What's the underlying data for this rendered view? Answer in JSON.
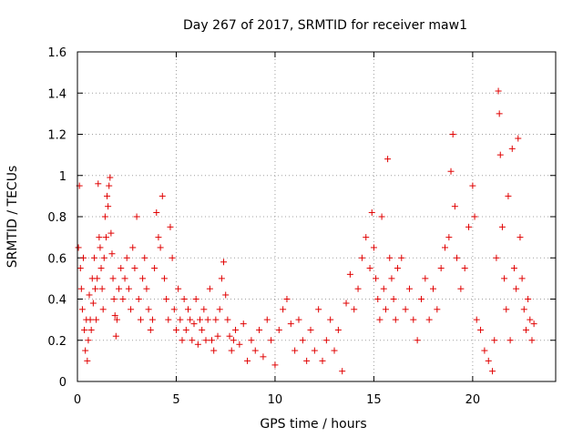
{
  "chart_data": {
    "type": "scatter",
    "title": "Day 267 of 2017, SRMTID for receiver maw1",
    "xlabel": "GPS time / hours",
    "ylabel": "SRMTID / TECUs",
    "xlim": [
      0,
      24.2
    ],
    "ylim": [
      0,
      1.6
    ],
    "x_ticks": [
      "0",
      "5",
      "10",
      "15",
      "20"
    ],
    "x_tick_values": [
      0,
      5,
      10,
      15,
      20
    ],
    "y_ticks": [
      "0",
      "0.2",
      "0.4",
      "0.6",
      "0.8",
      "1",
      "1.2",
      "1.4",
      "1.6"
    ],
    "y_tick_values": [
      0,
      0.2,
      0.4,
      0.6,
      0.8,
      1.0,
      1.2,
      1.4,
      1.6
    ],
    "grid": true,
    "marker": "plus",
    "color": "#e00000",
    "series": [
      {
        "name": "SRMTID",
        "points": [
          [
            0.05,
            0.65
          ],
          [
            0.1,
            0.95
          ],
          [
            0.15,
            0.55
          ],
          [
            0.2,
            0.45
          ],
          [
            0.25,
            0.35
          ],
          [
            0.3,
            0.6
          ],
          [
            0.35,
            0.25
          ],
          [
            0.4,
            0.15
          ],
          [
            0.45,
            0.3
          ],
          [
            0.5,
            0.1
          ],
          [
            0.55,
            0.2
          ],
          [
            0.6,
            0.42
          ],
          [
            0.65,
            0.3
          ],
          [
            0.7,
            0.25
          ],
          [
            0.75,
            0.5
          ],
          [
            0.8,
            0.38
          ],
          [
            0.85,
            0.6
          ],
          [
            0.9,
            0.45
          ],
          [
            0.95,
            0.3
          ],
          [
            1.0,
            0.5
          ],
          [
            1.05,
            0.96
          ],
          [
            1.1,
            0.7
          ],
          [
            1.15,
            0.65
          ],
          [
            1.2,
            0.55
          ],
          [
            1.25,
            0.45
          ],
          [
            1.3,
            0.35
          ],
          [
            1.35,
            0.6
          ],
          [
            1.4,
            0.8
          ],
          [
            1.45,
            0.7
          ],
          [
            1.5,
            0.9
          ],
          [
            1.55,
            0.85
          ],
          [
            1.6,
            0.95
          ],
          [
            1.65,
            0.99
          ],
          [
            1.7,
            0.72
          ],
          [
            1.75,
            0.62
          ],
          [
            1.8,
            0.5
          ],
          [
            1.85,
            0.4
          ],
          [
            1.9,
            0.32
          ],
          [
            1.95,
            0.22
          ],
          [
            2.0,
            0.3
          ],
          [
            2.1,
            0.45
          ],
          [
            2.2,
            0.55
          ],
          [
            2.3,
            0.4
          ],
          [
            2.4,
            0.5
          ],
          [
            2.5,
            0.6
          ],
          [
            2.6,
            0.45
          ],
          [
            2.7,
            0.35
          ],
          [
            2.8,
            0.65
          ],
          [
            2.9,
            0.55
          ],
          [
            3.0,
            0.8
          ],
          [
            3.1,
            0.4
          ],
          [
            3.2,
            0.3
          ],
          [
            3.3,
            0.5
          ],
          [
            3.4,
            0.6
          ],
          [
            3.5,
            0.45
          ],
          [
            3.6,
            0.35
          ],
          [
            3.7,
            0.25
          ],
          [
            3.8,
            0.3
          ],
          [
            3.9,
            0.55
          ],
          [
            4.0,
            0.82
          ],
          [
            4.1,
            0.7
          ],
          [
            4.2,
            0.65
          ],
          [
            4.3,
            0.9
          ],
          [
            4.4,
            0.5
          ],
          [
            4.5,
            0.4
          ],
          [
            4.6,
            0.3
          ],
          [
            4.7,
            0.75
          ],
          [
            4.8,
            0.6
          ],
          [
            4.9,
            0.35
          ],
          [
            5.0,
            0.25
          ],
          [
            5.1,
            0.45
          ],
          [
            5.2,
            0.3
          ],
          [
            5.3,
            0.2
          ],
          [
            5.4,
            0.4
          ],
          [
            5.5,
            0.25
          ],
          [
            5.6,
            0.35
          ],
          [
            5.7,
            0.3
          ],
          [
            5.8,
            0.2
          ],
          [
            5.9,
            0.28
          ],
          [
            6.0,
            0.4
          ],
          [
            6.1,
            0.18
          ],
          [
            6.2,
            0.3
          ],
          [
            6.3,
            0.25
          ],
          [
            6.4,
            0.35
          ],
          [
            6.5,
            0.2
          ],
          [
            6.6,
            0.3
          ],
          [
            6.7,
            0.45
          ],
          [
            6.8,
            0.2
          ],
          [
            6.9,
            0.15
          ],
          [
            7.0,
            0.3
          ],
          [
            7.1,
            0.22
          ],
          [
            7.2,
            0.35
          ],
          [
            7.3,
            0.5
          ],
          [
            7.4,
            0.58
          ],
          [
            7.5,
            0.42
          ],
          [
            7.6,
            0.3
          ],
          [
            7.7,
            0.22
          ],
          [
            7.8,
            0.15
          ],
          [
            7.9,
            0.2
          ],
          [
            8.0,
            0.25
          ],
          [
            8.2,
            0.18
          ],
          [
            8.4,
            0.28
          ],
          [
            8.6,
            0.1
          ],
          [
            8.8,
            0.2
          ],
          [
            9.0,
            0.15
          ],
          [
            9.2,
            0.25
          ],
          [
            9.4,
            0.12
          ],
          [
            9.6,
            0.3
          ],
          [
            9.8,
            0.2
          ],
          [
            10.0,
            0.08
          ],
          [
            10.2,
            0.25
          ],
          [
            10.4,
            0.35
          ],
          [
            10.6,
            0.4
          ],
          [
            10.8,
            0.28
          ],
          [
            11.0,
            0.15
          ],
          [
            11.2,
            0.3
          ],
          [
            11.4,
            0.2
          ],
          [
            11.6,
            0.1
          ],
          [
            11.8,
            0.25
          ],
          [
            12.0,
            0.15
          ],
          [
            12.2,
            0.35
          ],
          [
            12.4,
            0.1
          ],
          [
            12.6,
            0.2
          ],
          [
            12.8,
            0.3
          ],
          [
            13.0,
            0.15
          ],
          [
            13.2,
            0.25
          ],
          [
            13.4,
            0.05
          ],
          [
            13.6,
            0.38
          ],
          [
            13.8,
            0.52
          ],
          [
            14.0,
            0.35
          ],
          [
            14.2,
            0.45
          ],
          [
            14.4,
            0.6
          ],
          [
            14.6,
            0.7
          ],
          [
            14.8,
            0.55
          ],
          [
            14.9,
            0.82
          ],
          [
            15.0,
            0.65
          ],
          [
            15.1,
            0.5
          ],
          [
            15.2,
            0.4
          ],
          [
            15.3,
            0.3
          ],
          [
            15.4,
            0.8
          ],
          [
            15.5,
            0.45
          ],
          [
            15.6,
            0.35
          ],
          [
            15.7,
            1.08
          ],
          [
            15.8,
            0.6
          ],
          [
            15.9,
            0.5
          ],
          [
            16.0,
            0.4
          ],
          [
            16.1,
            0.3
          ],
          [
            16.2,
            0.55
          ],
          [
            16.4,
            0.6
          ],
          [
            16.6,
            0.35
          ],
          [
            16.8,
            0.45
          ],
          [
            17.0,
            0.3
          ],
          [
            17.2,
            0.2
          ],
          [
            17.4,
            0.4
          ],
          [
            17.6,
            0.5
          ],
          [
            17.8,
            0.3
          ],
          [
            18.0,
            0.45
          ],
          [
            18.2,
            0.35
          ],
          [
            18.4,
            0.55
          ],
          [
            18.6,
            0.65
          ],
          [
            18.8,
            0.7
          ],
          [
            18.9,
            1.02
          ],
          [
            19.0,
            1.2
          ],
          [
            19.1,
            0.85
          ],
          [
            19.2,
            0.6
          ],
          [
            19.4,
            0.45
          ],
          [
            19.6,
            0.55
          ],
          [
            19.8,
            0.75
          ],
          [
            20.0,
            0.95
          ],
          [
            20.1,
            0.8
          ],
          [
            20.2,
            0.3
          ],
          [
            20.4,
            0.25
          ],
          [
            20.6,
            0.15
          ],
          [
            20.8,
            0.1
          ],
          [
            21.0,
            0.05
          ],
          [
            21.1,
            0.2
          ],
          [
            21.2,
            0.6
          ],
          [
            21.3,
            1.41
          ],
          [
            21.35,
            1.3
          ],
          [
            21.4,
            1.1
          ],
          [
            21.5,
            0.75
          ],
          [
            21.6,
            0.5
          ],
          [
            21.7,
            0.35
          ],
          [
            21.8,
            0.9
          ],
          [
            21.9,
            0.2
          ],
          [
            22.0,
            1.13
          ],
          [
            22.1,
            0.55
          ],
          [
            22.2,
            0.45
          ],
          [
            22.3,
            1.18
          ],
          [
            22.4,
            0.7
          ],
          [
            22.5,
            0.5
          ],
          [
            22.6,
            0.35
          ],
          [
            22.7,
            0.25
          ],
          [
            22.8,
            0.4
          ],
          [
            22.9,
            0.3
          ],
          [
            23.0,
            0.2
          ],
          [
            23.1,
            0.28
          ]
        ]
      }
    ]
  }
}
